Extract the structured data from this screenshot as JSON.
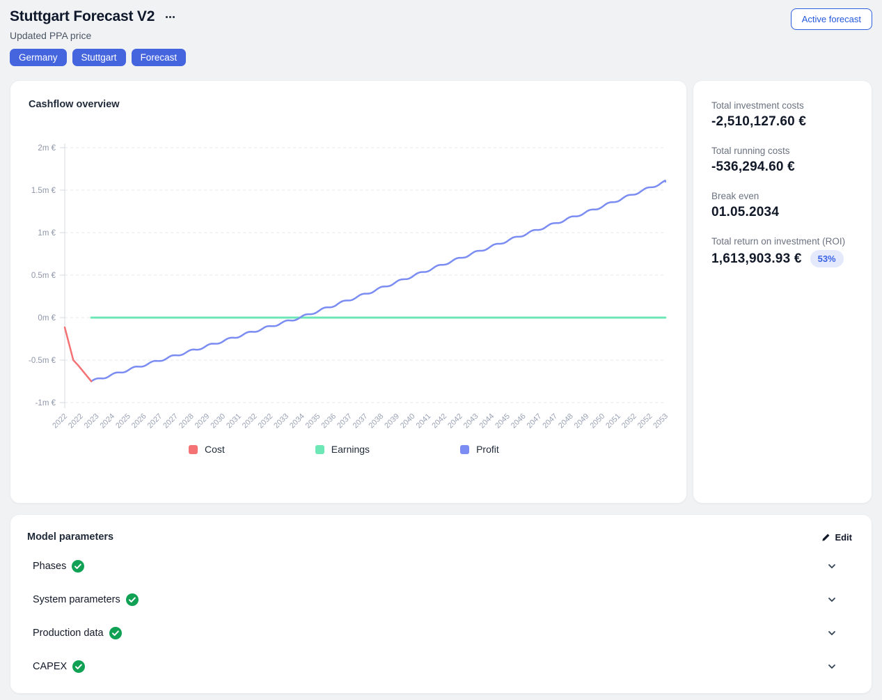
{
  "header": {
    "title": "Stuttgart Forecast V2",
    "subtitle": "Updated PPA price",
    "tags": [
      {
        "label": "Germany"
      },
      {
        "label": "Stuttgart"
      },
      {
        "label": "Forecast"
      }
    ],
    "active_forecast_label": "Active forecast"
  },
  "cashflow_card": {
    "title": "Cashflow overview"
  },
  "chart_data": {
    "type": "line",
    "title": "Cashflow overview",
    "unit": "m €",
    "ylim": [
      -1,
      2
    ],
    "grid": "dashed-horizontal",
    "legend_position": "bottom",
    "yticks": [
      {
        "value": 2,
        "label": "2m €"
      },
      {
        "value": 1.5,
        "label": "1.5m €"
      },
      {
        "value": 1,
        "label": "1m €"
      },
      {
        "value": 0.5,
        "label": "0.5m €"
      },
      {
        "value": 0,
        "label": "0m €"
      },
      {
        "value": -0.5,
        "label": "-0.5m €"
      },
      {
        "value": -1,
        "label": "-1m €"
      }
    ],
    "x_start_year": 2022,
    "x_tick_interval_months": 10,
    "xtick_labels": [
      "2022",
      "2022",
      "2023",
      "2024",
      "2025",
      "2026",
      "2027",
      "2027",
      "2028",
      "2029",
      "2030",
      "2031",
      "2032",
      "2032",
      "2033",
      "2034",
      "2035",
      "2036",
      "2037",
      "2037",
      "2038",
      "2039",
      "2040",
      "2041",
      "2042",
      "2042",
      "2043",
      "2044",
      "2045",
      "2046",
      "2047",
      "2047",
      "2048",
      "2049",
      "2050",
      "2051",
      "2052",
      "2052",
      "2053"
    ],
    "series": [
      {
        "name": "Cost",
        "color": "#f47174",
        "points": [
          [
            2022.0,
            -0.115
          ],
          [
            2022.45,
            -0.5
          ],
          [
            2022.7,
            -0.56
          ],
          [
            2023.4,
            -0.75
          ]
        ]
      },
      {
        "name": "Earnings",
        "color": "#6ee7b7",
        "points": [
          [
            2023.4,
            0
          ],
          [
            2053.66,
            0
          ]
        ]
      },
      {
        "name": "Profit",
        "color": "#7b8cf2",
        "wiggle": true,
        "points": [
          [
            2023.4,
            -0.75
          ],
          [
            2026,
            -0.57
          ],
          [
            2029,
            -0.37
          ],
          [
            2032,
            -0.16
          ],
          [
            2034.4,
            0
          ],
          [
            2038,
            0.29
          ],
          [
            2042,
            0.63
          ],
          [
            2046,
            0.96
          ],
          [
            2050,
            1.28
          ],
          [
            2053.66,
            1.6
          ]
        ]
      }
    ],
    "break_even_year": 2034.4
  },
  "stats": {
    "items": [
      {
        "label": "Total investment costs",
        "value": "-2,510,127.60 €"
      },
      {
        "label": "Total running costs",
        "value": "-536,294.60 €"
      },
      {
        "label": "Break even",
        "value": "01.05.2034"
      },
      {
        "label": "Total return on investment (ROI)",
        "value": "1,613,903.93 €",
        "badge": "53%"
      }
    ]
  },
  "model_parameters": {
    "title": "Model parameters",
    "edit_label": "Edit",
    "sections": [
      {
        "label": "Phases",
        "status": "complete"
      },
      {
        "label": "System parameters",
        "status": "complete"
      },
      {
        "label": "Production data",
        "status": "complete"
      },
      {
        "label": "CAPEX",
        "status": "complete"
      }
    ]
  },
  "colors": {
    "tag_blue": "#4565df",
    "link_blue": "#2458dd",
    "badge_bg": "#e4eafc",
    "badge_text": "#3b63e8",
    "check_green": "#10a155",
    "cost": "#f47174",
    "earnings": "#6ee7b7",
    "profit": "#7b8cf2"
  }
}
